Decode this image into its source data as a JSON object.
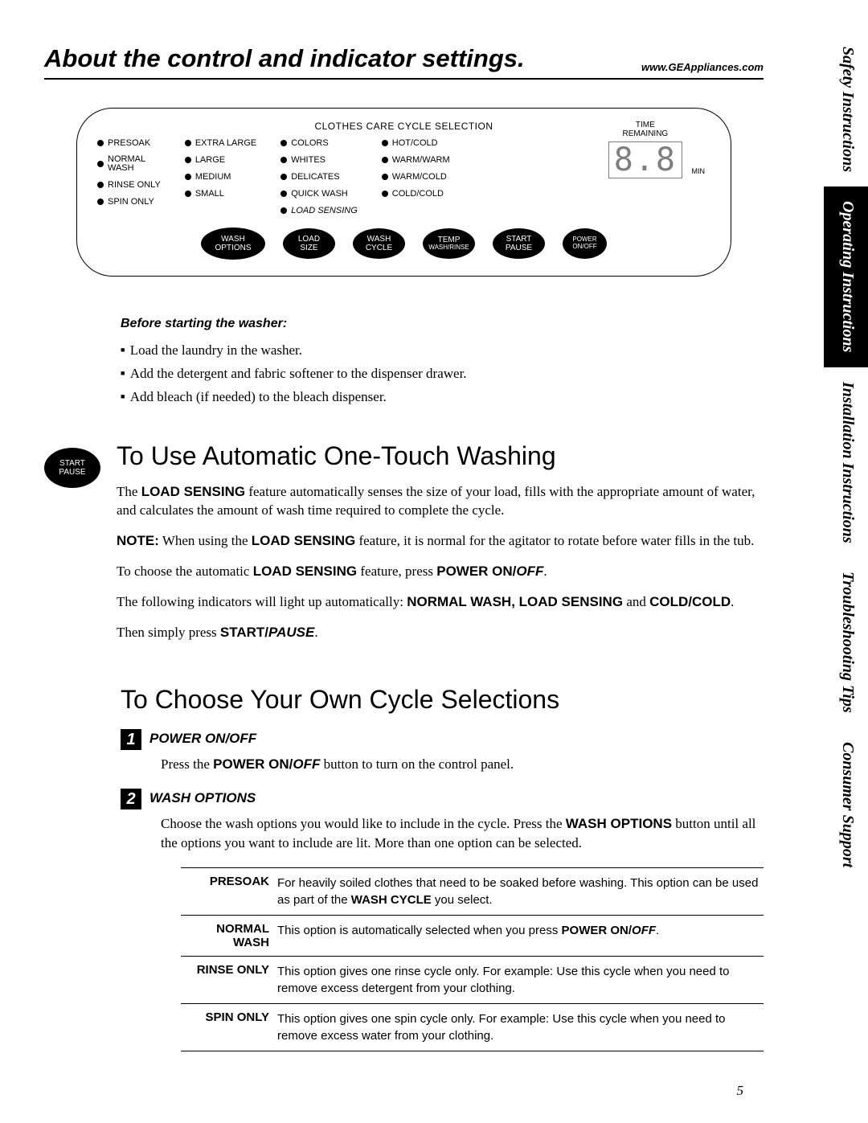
{
  "header": {
    "title": "About the control and indicator settings.",
    "url": "www.GEAppliances.com"
  },
  "panel": {
    "title": "CLOTHES CARE CYCLE SELECTION",
    "cols": [
      [
        "PRESOAK",
        "NORMAL\nWASH",
        "RINSE ONLY",
        "SPIN ONLY"
      ],
      [
        "EXTRA LARGE",
        "LARGE",
        "MEDIUM",
        "SMALL"
      ],
      [
        "COLORS",
        "WHITES",
        "DELICATES",
        "QUICK WASH",
        "LOAD SENSING"
      ],
      [
        "HOT/COLD",
        "WARM/WARM",
        "WARM/COLD",
        "COLD/COLD"
      ]
    ],
    "time": {
      "label": "TIME\nREMAINING",
      "digits": "8.8",
      "min": "MIN"
    },
    "buttons": [
      {
        "l1": "WASH",
        "l2": "OPTIONS"
      },
      {
        "l1": "LOAD",
        "l2": "SIZE"
      },
      {
        "l1": "WASH",
        "l2": "CYCLE"
      },
      {
        "l1": "TEMP",
        "l2": "WASH/RINSE"
      },
      {
        "l1": "START",
        "l2": "PAUSE"
      },
      {
        "l1": "POWER",
        "l2": "ON/OFF"
      }
    ]
  },
  "before": {
    "title": "Before starting the washer:",
    "items": [
      "Load the laundry in the washer.",
      "Add the detergent and fabric softener to the dispenser drawer.",
      "Add bleach (if needed) to the bleach dispenser."
    ]
  },
  "section1": {
    "icon": {
      "l1": "START",
      "l2": "PAUSE"
    },
    "title": "To Use Automatic One-Touch Washing"
  },
  "section2": {
    "title": "To Choose Your Own Cycle Selections"
  },
  "steps": [
    {
      "n": "1",
      "title": "POWER ON/OFF"
    },
    {
      "n": "2",
      "title": "WASH OPTIONS"
    }
  ],
  "optionsTable": [
    {
      "name": "PRESOAK"
    },
    {
      "name": "NORMAL WASH"
    },
    {
      "name": "RINSE ONLY"
    },
    {
      "name": "SPIN ONLY"
    }
  ],
  "tabs": [
    {
      "label": "Safety Instructions",
      "inv": false
    },
    {
      "label": "Operating Instructions",
      "inv": true
    },
    {
      "label": "Installation Instructions",
      "inv": false
    },
    {
      "label": "Troubleshooting Tips",
      "inv": false
    },
    {
      "label": "Consumer Support",
      "inv": false
    }
  ],
  "pageNumber": "5"
}
